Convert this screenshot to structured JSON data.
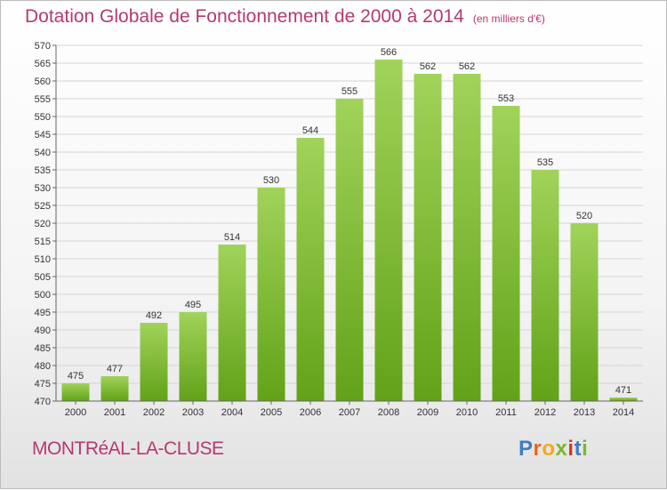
{
  "title": "Dotation Globale de Fonctionnement de 2000 à 2014",
  "unit_note": "(en milliers d'€)",
  "commune": "MONTRéAL-LA-CLUSE",
  "logo": {
    "letters": [
      "P",
      "r",
      "o",
      "x",
      "i",
      "t",
      "i"
    ],
    "colors": [
      "#3d7fc1",
      "#e8661e",
      "#f5a81c",
      "#7cb82f",
      "#d7342c",
      "#3d7fc1",
      "#7cb82f"
    ]
  },
  "colors": {
    "bar_top": "#a1d35a",
    "bar_bottom": "#62a218",
    "grid": "#d5d5d5",
    "axis": "#666666"
  },
  "chart_data": {
    "type": "bar",
    "title": "Dotation Globale de Fonctionnement de 2000 à 2014",
    "categories": [
      "2000",
      "2001",
      "2002",
      "2003",
      "2004",
      "2005",
      "2006",
      "2007",
      "2008",
      "2009",
      "2010",
      "2011",
      "2012",
      "2013",
      "2014"
    ],
    "values": [
      475,
      477,
      492,
      495,
      514,
      530,
      544,
      555,
      566,
      562,
      562,
      553,
      535,
      520,
      471
    ],
    "ylim": [
      470,
      570
    ],
    "ytick_step": 5,
    "xlabel": "",
    "ylabel": "",
    "grid": true
  }
}
